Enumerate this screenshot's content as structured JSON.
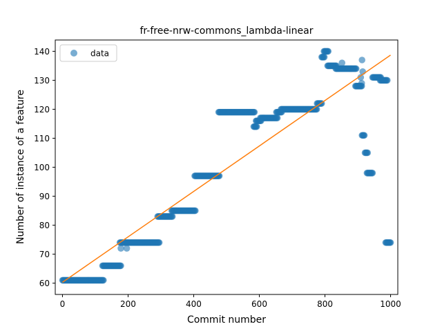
{
  "chart_data": {
    "type": "scatter",
    "title": "fr-free-nrw-commons_lambda-linear",
    "xlabel": "Commit number",
    "ylabel": "Number of instance of a feature",
    "xlim": [
      -22,
      1022
    ],
    "ylim": [
      56.1,
      143.9
    ],
    "xticks": [
      0,
      200,
      400,
      600,
      800,
      1000
    ],
    "yticks": [
      60,
      70,
      80,
      90,
      100,
      110,
      120,
      130,
      140
    ],
    "legend": {
      "position": "top-left",
      "entries": [
        "data"
      ]
    },
    "grid": false,
    "colors": {
      "data": "#1f77b4",
      "fit": "#ff7f0e"
    },
    "series": [
      {
        "name": "data",
        "kind": "scatter",
        "segments": [
          {
            "x_start": 0,
            "x_end": 125,
            "y": 61
          },
          {
            "x_start": 122,
            "x_end": 178,
            "y": 66
          },
          {
            "x_start": 175,
            "x_end": 295,
            "y": 74
          },
          {
            "x_start": 290,
            "x_end": 335,
            "y": 83
          },
          {
            "x_start": 333,
            "x_end": 405,
            "y": 85
          },
          {
            "x_start": 403,
            "x_end": 478,
            "y": 97
          },
          {
            "x_start": 476,
            "x_end": 585,
            "y": 119
          },
          {
            "x_start": 583,
            "x_end": 592,
            "y": 114
          },
          {
            "x_start": 590,
            "x_end": 605,
            "y": 116
          },
          {
            "x_start": 603,
            "x_end": 655,
            "y": 117
          },
          {
            "x_start": 652,
            "x_end": 668,
            "y": 119
          },
          {
            "x_start": 666,
            "x_end": 775,
            "y": 120
          },
          {
            "x_start": 776,
            "x_end": 790,
            "y": 122
          },
          {
            "x_start": 790,
            "x_end": 798,
            "y": 138
          },
          {
            "x_start": 797,
            "x_end": 810,
            "y": 140
          },
          {
            "x_start": 808,
            "x_end": 835,
            "y": 135
          },
          {
            "x_start": 833,
            "x_end": 895,
            "y": 134
          },
          {
            "x_start": 893,
            "x_end": 912,
            "y": 128
          },
          {
            "x_start": 913,
            "x_end": 920,
            "y": 111
          },
          {
            "x_start": 922,
            "x_end": 930,
            "y": 105
          },
          {
            "x_start": 928,
            "x_end": 945,
            "y": 98
          },
          {
            "x_start": 945,
            "x_end": 970,
            "y": 131
          },
          {
            "x_start": 968,
            "x_end": 990,
            "y": 130
          },
          {
            "x_start": 985,
            "x_end": 1000,
            "y": 74
          }
        ],
        "points": [
          {
            "x": 178,
            "y": 72
          },
          {
            "x": 196,
            "y": 72
          },
          {
            "x": 852,
            "y": 136
          },
          {
            "x": 913,
            "y": 137
          },
          {
            "x": 915,
            "y": 133
          },
          {
            "x": 909,
            "y": 131
          },
          {
            "x": 912,
            "y": 129
          }
        ]
      },
      {
        "name": "",
        "kind": "line",
        "x": [
          0,
          1000
        ],
        "y": [
          60.3,
          138.7
        ]
      }
    ]
  }
}
